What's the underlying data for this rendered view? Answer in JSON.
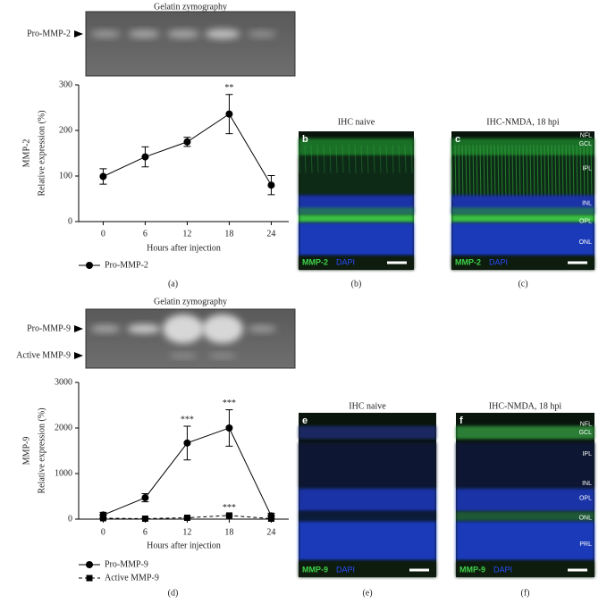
{
  "chart_data": [
    {
      "type": "line",
      "gel": {
        "title": "Gelatin zymography",
        "bands": [
          "Pro-MMP-2"
        ]
      },
      "outer_ylabel": "MMP-2",
      "ylabel": "Relative expression (%)",
      "xlabel": "Hours after injection",
      "x": [
        0,
        6,
        12,
        18,
        24
      ],
      "xlim": [
        -3.5,
        26.5
      ],
      "xticks": [
        0,
        6,
        12,
        18,
        24
      ],
      "ylim": [
        0,
        300
      ],
      "yticks": [
        0,
        100,
        200,
        300
      ],
      "series": [
        {
          "name": "Pro-MMP-2",
          "color": "#000000",
          "marker": "circle",
          "line_style": "solid",
          "values": [
            99,
            142,
            175,
            236,
            80
          ],
          "errors": [
            17,
            22,
            10,
            43,
            21
          ],
          "significance": [
            null,
            null,
            null,
            "**",
            null
          ]
        }
      ],
      "caption": "(a)"
    },
    {
      "type": "line",
      "gel": {
        "title": "Gelatin zymography",
        "bands": [
          "Pro-MMP-9",
          "Active MMP-9"
        ]
      },
      "outer_ylabel": "MMP-9",
      "ylabel": "Relative expression (%)",
      "xlabel": "Hours after injection",
      "x": [
        0,
        6,
        12,
        18,
        24
      ],
      "xlim": [
        -3.5,
        26.5
      ],
      "xticks": [
        0,
        6,
        12,
        18,
        24
      ],
      "ylim": [
        0,
        3000
      ],
      "yticks": [
        0,
        1000,
        2000,
        3000
      ],
      "series": [
        {
          "name": "Pro-MMP-9",
          "color": "#000000",
          "marker": "circle",
          "line_style": "solid",
          "values": [
            90,
            470,
            1670,
            2000,
            70
          ],
          "errors": [
            60,
            90,
            370,
            400,
            60
          ],
          "significance": [
            null,
            null,
            "***",
            "***",
            null
          ]
        },
        {
          "name": "Active MMP-9",
          "color": "#000000",
          "marker": "square",
          "line_style": "dashed",
          "values": [
            20,
            10,
            30,
            80,
            10
          ],
          "errors": [
            10,
            5,
            10,
            20,
            5
          ],
          "significance": [
            null,
            null,
            null,
            "***",
            null
          ]
        }
      ],
      "caption": "(d)"
    }
  ],
  "panels": [
    {
      "title": "IHC naive",
      "letter": "b",
      "stain": "MMP-2",
      "counterstain": "DAPI",
      "caption": "(b)",
      "layers": []
    },
    {
      "title": "IHC-NMDA, 18 hpi",
      "letter": "c",
      "stain": "MMP-2",
      "counterstain": "DAPI",
      "caption": "(c)",
      "layers": [
        "NFL",
        "GCL",
        "IPL",
        "INL",
        "OPL",
        "ONL"
      ]
    },
    {
      "title": "IHC naive",
      "letter": "e",
      "stain": "MMP-9",
      "counterstain": "DAPI",
      "caption": "(e)",
      "layers": []
    },
    {
      "title": "IHC-NMDA, 18 hpi",
      "letter": "f",
      "stain": "MMP-9",
      "counterstain": "DAPI",
      "caption": "(f)",
      "layers": [
        "NFL",
        "GCL",
        "IPL",
        "INL",
        "OPL",
        "ONL",
        "PRL"
      ]
    }
  ]
}
